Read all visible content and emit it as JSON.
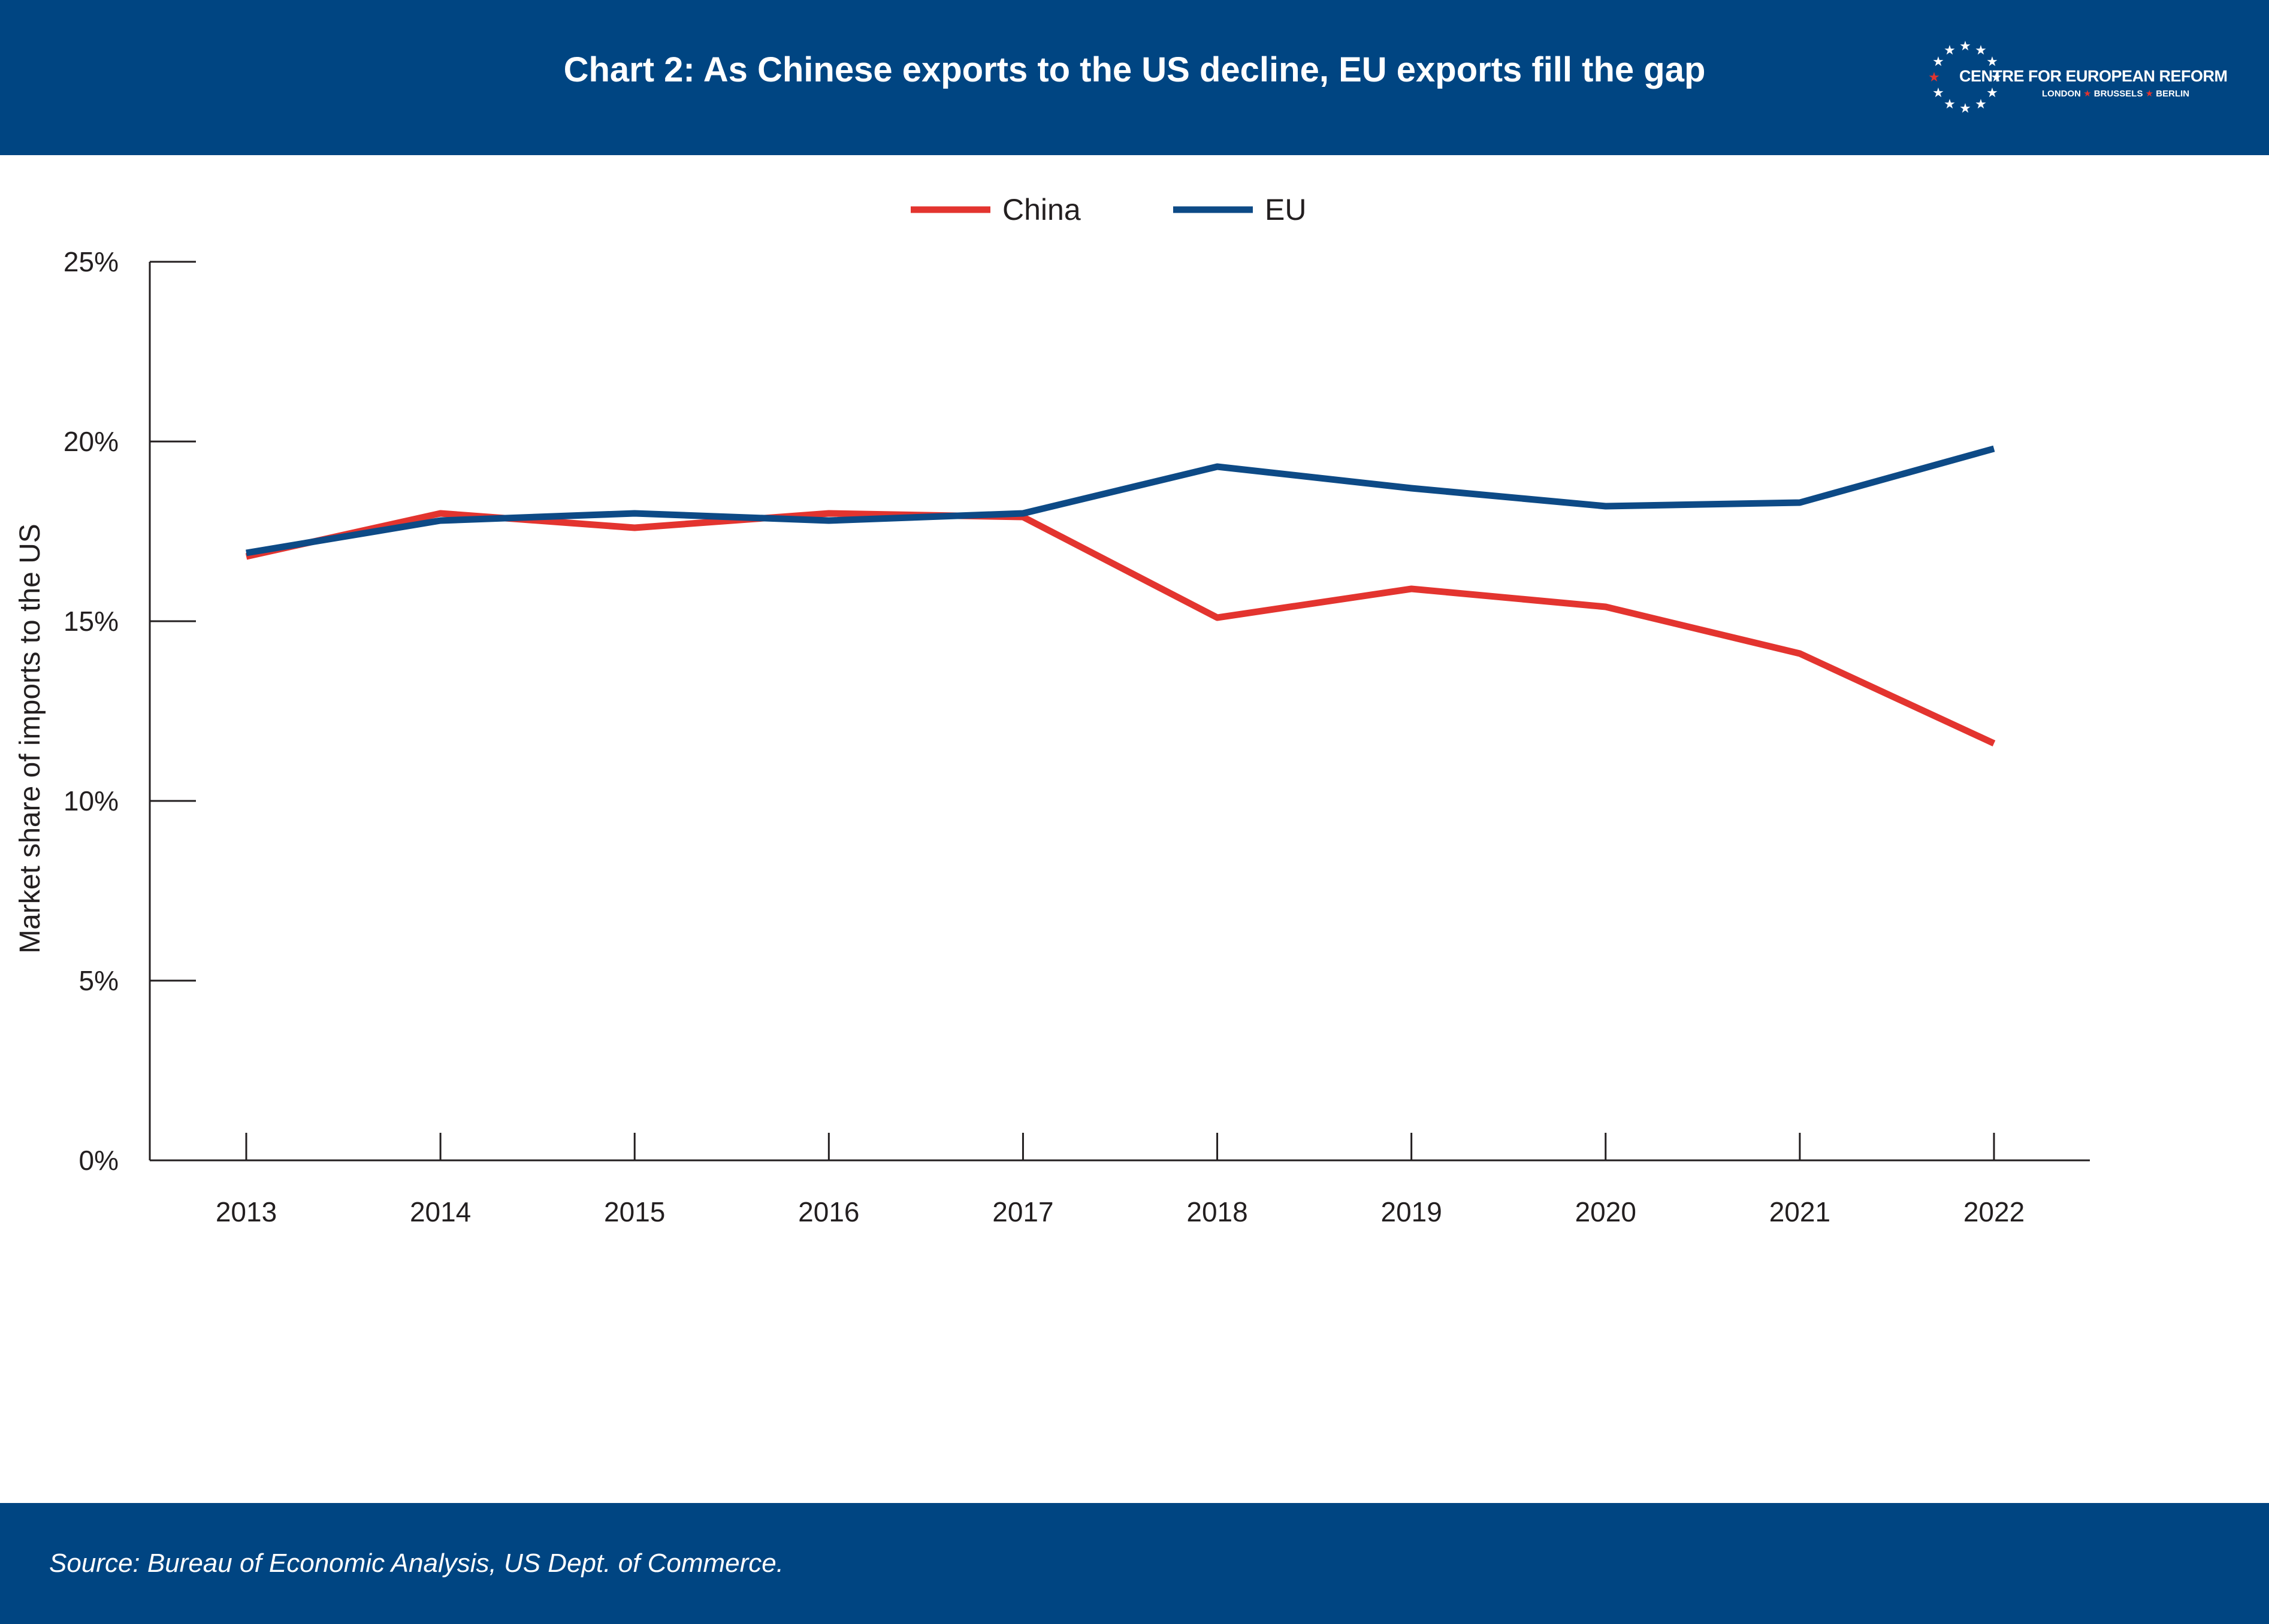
{
  "header": {
    "title": "Chart 2: As Chinese exports to the US decline, EU exports fill the gap",
    "logo": {
      "name": "CENTRE FOR EUROPEAN REFORM",
      "cities": [
        "LONDON",
        "BRUSSELS",
        "BERLIN"
      ],
      "separator": "★"
    }
  },
  "colors": {
    "brand_blue": "#004582",
    "china_red": "#e3342f",
    "eu_blue": "#0d4a86",
    "axis": "#231f20"
  },
  "chart_data": {
    "type": "line",
    "title": "",
    "xlabel": "",
    "ylabel": "Market share of imports to the US",
    "x": [
      "2013",
      "2014",
      "2015",
      "2016",
      "2017",
      "2018",
      "2019",
      "2020",
      "2021",
      "2022"
    ],
    "series": [
      {
        "name": "China",
        "color": "#e3342f",
        "values": [
          16.8,
          18.0,
          17.6,
          18.0,
          17.9,
          15.1,
          15.9,
          15.4,
          14.1,
          11.6
        ]
      },
      {
        "name": "EU",
        "color": "#0d4a86",
        "values": [
          16.9,
          17.8,
          18.0,
          17.8,
          18.0,
          19.3,
          18.7,
          18.2,
          18.3,
          19.8
        ]
      }
    ],
    "ylim": [
      0,
      25
    ],
    "yticks": [
      0,
      5,
      10,
      15,
      20,
      25
    ],
    "ytick_labels": [
      "0%",
      "5%",
      "10%",
      "15%",
      "20%",
      "25%"
    ],
    "grid": false,
    "legend_position": "top-center"
  },
  "footer": {
    "source": "Source: Bureau of Economic Analysis, US Dept. of Commerce."
  }
}
